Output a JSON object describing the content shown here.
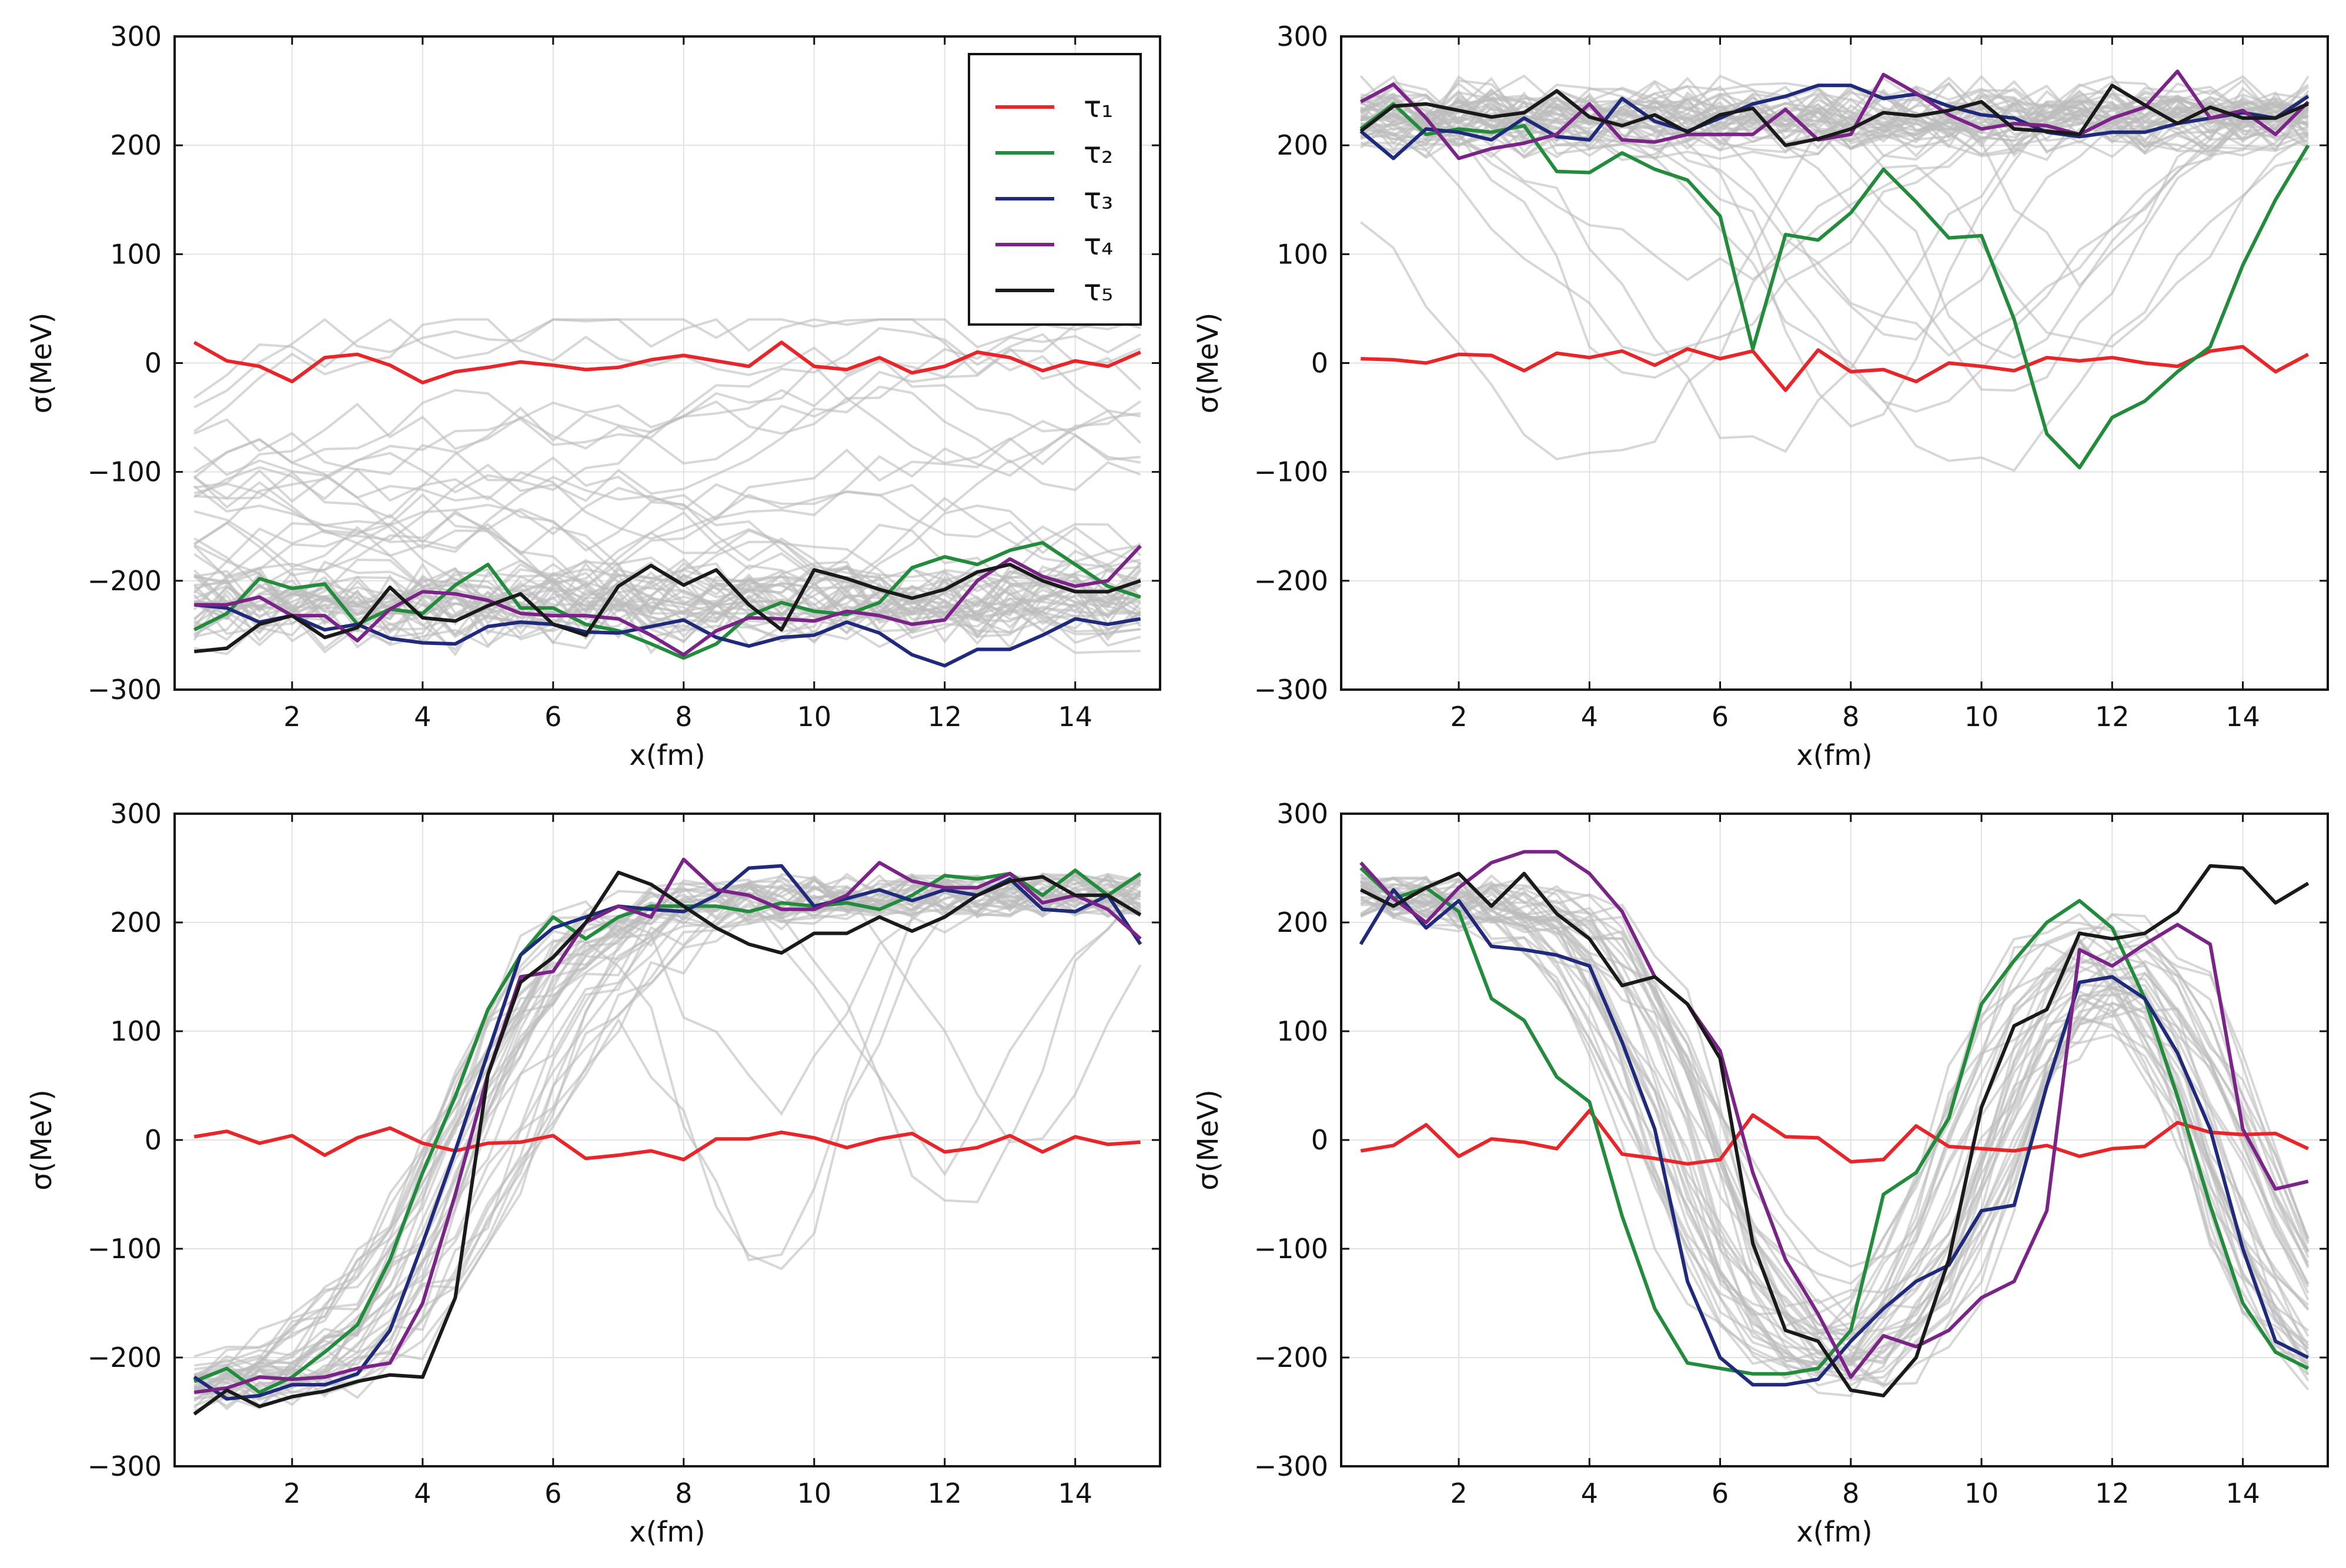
{
  "chart_data": [
    {
      "type": "line",
      "panel": "top-left",
      "xlabel": "x(fm)",
      "ylabel": "σ(MeV)",
      "xlim": [
        0.2,
        15.3
      ],
      "ylim": [
        -300,
        300
      ],
      "xticks": [
        2,
        4,
        6,
        8,
        10,
        12,
        14
      ],
      "yticks": [
        -300,
        -200,
        -100,
        0,
        100,
        200,
        300
      ],
      "grid": true,
      "legend": {
        "position": "top-right",
        "entries": [
          {
            "label": "τ₁",
            "color": "#e8262a"
          },
          {
            "label": "τ₂",
            "color": "#228b3c"
          },
          {
            "label": "τ₃",
            "color": "#1f2a7a"
          },
          {
            "label": "τ₄",
            "color": "#7b2488"
          },
          {
            "label": "τ₅",
            "color": "#1a1a1a"
          }
        ]
      },
      "x": [
        0.5,
        1.0,
        1.5,
        2.0,
        2.5,
        3.0,
        3.5,
        4.0,
        4.5,
        5.0,
        5.5,
        6.0,
        6.5,
        7.0,
        7.5,
        8.0,
        8.5,
        9.0,
        9.5,
        10.0,
        10.5,
        11.0,
        11.5,
        12.0,
        12.5,
        13.0,
        13.5,
        14.0,
        14.5,
        15.0
      ],
      "series": [
        {
          "name": "τ₁",
          "color": "#e8262a",
          "values": [
            19,
            2,
            -3,
            -17,
            5,
            8,
            -2,
            -18,
            -8,
            -4,
            1,
            -2,
            -6,
            -4,
            3,
            7,
            2,
            -3,
            19,
            -3,
            -6,
            5,
            -9,
            -3,
            10,
            5,
            -7,
            2,
            -3,
            10
          ]
        },
        {
          "name": "τ₂",
          "color": "#228b3c",
          "values": [
            -245,
            -230,
            -198,
            -207,
            -203,
            -240,
            -226,
            -230,
            -204,
            -185,
            -225,
            -225,
            -240,
            -246,
            -258,
            -271,
            -258,
            -232,
            -220,
            -228,
            -231,
            -220,
            -188,
            -178,
            -185,
            -172,
            -165,
            -185,
            -205,
            -215
          ]
        },
        {
          "name": "τ₃",
          "color": "#1f2a7a",
          "values": [
            -222,
            -225,
            -238,
            -232,
            -245,
            -240,
            -253,
            -257,
            -258,
            -242,
            -238,
            -240,
            -247,
            -248,
            -242,
            -236,
            -252,
            -260,
            -252,
            -250,
            -238,
            -248,
            -268,
            -278,
            -263,
            -263,
            -250,
            -235,
            -240,
            -235
          ]
        },
        {
          "name": "τ₄",
          "color": "#7b2488",
          "values": [
            -222,
            -222,
            -215,
            -232,
            -232,
            -255,
            -226,
            -210,
            -212,
            -218,
            -230,
            -232,
            -232,
            -235,
            -250,
            -268,
            -246,
            -234,
            -235,
            -237,
            -228,
            -232,
            -240,
            -236,
            -200,
            -180,
            -196,
            -205,
            -200,
            -168
          ]
        },
        {
          "name": "τ₅",
          "color": "#1a1a1a",
          "values": [
            -265,
            -262,
            -240,
            -232,
            -252,
            -243,
            -206,
            -234,
            -237,
            -223,
            -212,
            -240,
            -250,
            -205,
            -186,
            -204,
            -190,
            -222,
            -245,
            -190,
            -198,
            -208,
            -216,
            -208,
            -192,
            -185,
            -200,
            -210,
            -210,
            -200
          ]
        }
      ],
      "background_bands": [
        {
          "name": "upper",
          "center": -40,
          "spread": 85,
          "count": 22
        },
        {
          "name": "lower",
          "center": -225,
          "spread": 40,
          "count": 30
        }
      ]
    },
    {
      "type": "line",
      "panel": "top-right",
      "xlabel": "x(fm)",
      "ylabel": "σ(MeV)",
      "xlim": [
        0.2,
        15.3
      ],
      "ylim": [
        -300,
        300
      ],
      "xticks": [
        2,
        4,
        6,
        8,
        10,
        12,
        14
      ],
      "yticks": [
        -300,
        -200,
        -100,
        0,
        100,
        200,
        300
      ],
      "grid": true,
      "x": [
        0.5,
        1.0,
        1.5,
        2.0,
        2.5,
        3.0,
        3.5,
        4.0,
        4.5,
        5.0,
        5.5,
        6.0,
        6.5,
        7.0,
        7.5,
        8.0,
        8.5,
        9.0,
        9.5,
        10.0,
        10.5,
        11.0,
        11.5,
        12.0,
        12.5,
        13.0,
        13.5,
        14.0,
        14.5,
        15.0
      ],
      "series": [
        {
          "name": "τ₁",
          "color": "#e8262a",
          "values": [
            4,
            3,
            0,
            8,
            7,
            -7,
            9,
            5,
            11,
            -2,
            13,
            4,
            11,
            -25,
            12,
            -8,
            -6,
            -17,
            0,
            -3,
            -7,
            5,
            2,
            5,
            0,
            -3,
            11,
            15,
            -8,
            8
          ]
        },
        {
          "name": "τ₂",
          "color": "#228b3c",
          "values": [
            215,
            238,
            210,
            215,
            212,
            218,
            176,
            175,
            193,
            178,
            168,
            135,
            13,
            118,
            113,
            138,
            178,
            148,
            115,
            117,
            40,
            -65,
            -96,
            -50,
            -35,
            -8,
            15,
            90,
            150,
            200
          ]
        },
        {
          "name": "τ₃",
          "color": "#1f2a7a",
          "values": [
            213,
            188,
            215,
            212,
            205,
            225,
            208,
            205,
            243,
            222,
            213,
            225,
            238,
            245,
            255,
            255,
            243,
            247,
            236,
            228,
            225,
            212,
            208,
            212,
            212,
            220,
            225,
            230,
            225,
            245
          ]
        },
        {
          "name": "τ₄",
          "color": "#7b2488",
          "values": [
            240,
            256,
            225,
            188,
            197,
            202,
            210,
            238,
            205,
            203,
            210,
            210,
            210,
            233,
            205,
            210,
            265,
            248,
            228,
            215,
            220,
            218,
            210,
            225,
            235,
            268,
            225,
            232,
            210,
            240
          ]
        },
        {
          "name": "τ₅",
          "color": "#1a1a1a",
          "values": [
            213,
            236,
            238,
            232,
            226,
            230,
            250,
            226,
            218,
            228,
            212,
            228,
            234,
            200,
            206,
            215,
            230,
            227,
            232,
            240,
            215,
            213,
            210,
            255,
            237,
            220,
            235,
            225,
            225,
            238
          ]
        }
      ],
      "background_bands": [
        {
          "name": "upper",
          "center": 225,
          "spread": 30,
          "count": 34
        },
        {
          "name": "dips",
          "center": 100,
          "spread": 120,
          "count": 12
        }
      ]
    },
    {
      "type": "line",
      "panel": "bottom-left",
      "xlabel": "x(fm)",
      "ylabel": "σ(MeV)",
      "xlim": [
        0.2,
        15.3
      ],
      "ylim": [
        -300,
        300
      ],
      "xticks": [
        2,
        4,
        6,
        8,
        10,
        12,
        14
      ],
      "yticks": [
        -300,
        -200,
        -100,
        0,
        100,
        200,
        300
      ],
      "grid": true,
      "x": [
        0.5,
        1.0,
        1.5,
        2.0,
        2.5,
        3.0,
        3.5,
        4.0,
        4.5,
        5.0,
        5.5,
        6.0,
        6.5,
        7.0,
        7.5,
        8.0,
        8.5,
        9.0,
        9.5,
        10.0,
        10.5,
        11.0,
        11.5,
        12.0,
        12.5,
        13.0,
        13.5,
        14.0,
        14.5,
        15.0
      ],
      "series": [
        {
          "name": "τ₁",
          "color": "#e8262a",
          "values": [
            3,
            8,
            -3,
            4,
            -14,
            2,
            11,
            -3,
            -10,
            -3,
            -2,
            4,
            -17,
            -14,
            -10,
            -18,
            1,
            1,
            7,
            2,
            -7,
            1,
            6,
            -11,
            -7,
            4,
            -11,
            3,
            -4,
            -2
          ]
        },
        {
          "name": "τ₂",
          "color": "#228b3c",
          "values": [
            -222,
            -210,
            -232,
            -218,
            -195,
            -170,
            -110,
            -30,
            40,
            120,
            170,
            205,
            185,
            205,
            215,
            215,
            215,
            210,
            218,
            215,
            218,
            212,
            225,
            243,
            240,
            245,
            225,
            248,
            225,
            245
          ]
        },
        {
          "name": "τ₃",
          "color": "#1f2a7a",
          "values": [
            -218,
            -238,
            -235,
            -225,
            -225,
            -215,
            -175,
            -95,
            -10,
            80,
            170,
            195,
            205,
            215,
            212,
            210,
            225,
            250,
            252,
            215,
            222,
            230,
            220,
            230,
            225,
            240,
            212,
            210,
            225,
            180
          ]
        },
        {
          "name": "τ₄",
          "color": "#7b2488",
          "values": [
            -232,
            -228,
            -218,
            -220,
            -218,
            -210,
            -205,
            -150,
            -50,
            60,
            150,
            155,
            200,
            215,
            205,
            258,
            230,
            225,
            212,
            212,
            225,
            255,
            238,
            232,
            232,
            245,
            218,
            225,
            212,
            185
          ]
        },
        {
          "name": "τ₅",
          "color": "#1a1a1a",
          "values": [
            -252,
            -230,
            -245,
            -236,
            -231,
            -222,
            -216,
            -218,
            -145,
            60,
            145,
            168,
            200,
            246,
            235,
            215,
            195,
            180,
            172,
            190,
            190,
            205,
            192,
            205,
            225,
            238,
            242,
            225,
            225,
            207
          ]
        }
      ],
      "background_bands": [
        {
          "name": "kink",
          "center": 220,
          "spread": 35,
          "count": 34
        },
        {
          "name": "late",
          "center": 150,
          "spread": 90,
          "count": 12
        }
      ]
    },
    {
      "type": "line",
      "panel": "bottom-right",
      "xlabel": "x(fm)",
      "ylabel": "σ(MeV)",
      "xlim": [
        0.2,
        15.3
      ],
      "ylim": [
        -300,
        300
      ],
      "xticks": [
        2,
        4,
        6,
        8,
        10,
        12,
        14
      ],
      "yticks": [
        -300,
        -200,
        -100,
        0,
        100,
        200,
        300
      ],
      "grid": true,
      "x": [
        0.5,
        1.0,
        1.5,
        2.0,
        2.5,
        3.0,
        3.5,
        4.0,
        4.5,
        5.0,
        5.5,
        6.0,
        6.5,
        7.0,
        7.5,
        8.0,
        8.5,
        9.0,
        9.5,
        10.0,
        10.5,
        11.0,
        11.5,
        12.0,
        12.5,
        13.0,
        13.5,
        14.0,
        14.5,
        15.0
      ],
      "series": [
        {
          "name": "τ₁",
          "color": "#e8262a",
          "values": [
            -10,
            -5,
            14,
            -15,
            1,
            -2,
            -8,
            27,
            -13,
            -17,
            -22,
            -18,
            23,
            3,
            2,
            -20,
            -18,
            13,
            -6,
            -8,
            -10,
            -5,
            -15,
            -8,
            -6,
            16,
            7,
            5,
            6,
            -8
          ]
        },
        {
          "name": "τ₂",
          "color": "#228b3c",
          "values": [
            250,
            222,
            232,
            210,
            130,
            110,
            58,
            35,
            -70,
            -155,
            -205,
            -210,
            -215,
            -215,
            -210,
            -175,
            -50,
            -30,
            20,
            125,
            165,
            200,
            220,
            195,
            130,
            40,
            -60,
            -150,
            -195,
            -210
          ]
        },
        {
          "name": "τ₃",
          "color": "#1f2a7a",
          "values": [
            180,
            230,
            195,
            220,
            178,
            175,
            170,
            160,
            90,
            10,
            -130,
            -200,
            -225,
            -225,
            -220,
            -185,
            -155,
            -130,
            -115,
            -65,
            -60,
            50,
            145,
            150,
            130,
            80,
            10,
            -100,
            -185,
            -200
          ]
        },
        {
          "name": "τ₄",
          "color": "#7b2488",
          "values": [
            255,
            222,
            200,
            232,
            255,
            265,
            265,
            245,
            210,
            150,
            125,
            82,
            -30,
            -110,
            -160,
            -218,
            -180,
            -190,
            -175,
            -145,
            -130,
            -65,
            175,
            160,
            180,
            198,
            180,
            10,
            -45,
            -38
          ]
        },
        {
          "name": "τ₅",
          "color": "#1a1a1a",
          "values": [
            230,
            215,
            232,
            245,
            215,
            245,
            208,
            185,
            142,
            150,
            125,
            75,
            -95,
            -175,
            -185,
            -230,
            -235,
            -200,
            -110,
            30,
            105,
            120,
            190,
            185,
            190,
            210,
            252,
            250,
            218,
            236
          ]
        }
      ],
      "background_bands": [
        {
          "name": "wave",
          "center": 0,
          "spread": 40,
          "count": 36
        }
      ]
    }
  ]
}
